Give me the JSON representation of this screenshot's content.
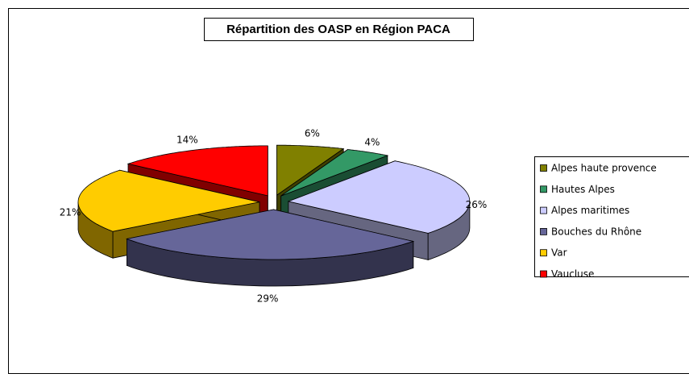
{
  "chart_data": {
    "type": "pie3d",
    "title": "Répartition des OASP en Région PACA",
    "categories": [
      "Alpes haute provence",
      "Hautes Alpes",
      "Alpes maritimes",
      "Bouches du Rhône",
      "Var",
      "Vaucluse"
    ],
    "values": [
      6,
      4,
      26,
      29,
      21,
      14
    ],
    "value_labels": [
      "6%",
      "4%",
      "26%",
      "29%",
      "21%",
      "14%"
    ],
    "colors": [
      "#808000",
      "#339966",
      "#ccccff",
      "#666699",
      "#ffcc00",
      "#ff0000"
    ],
    "legend": "right"
  }
}
